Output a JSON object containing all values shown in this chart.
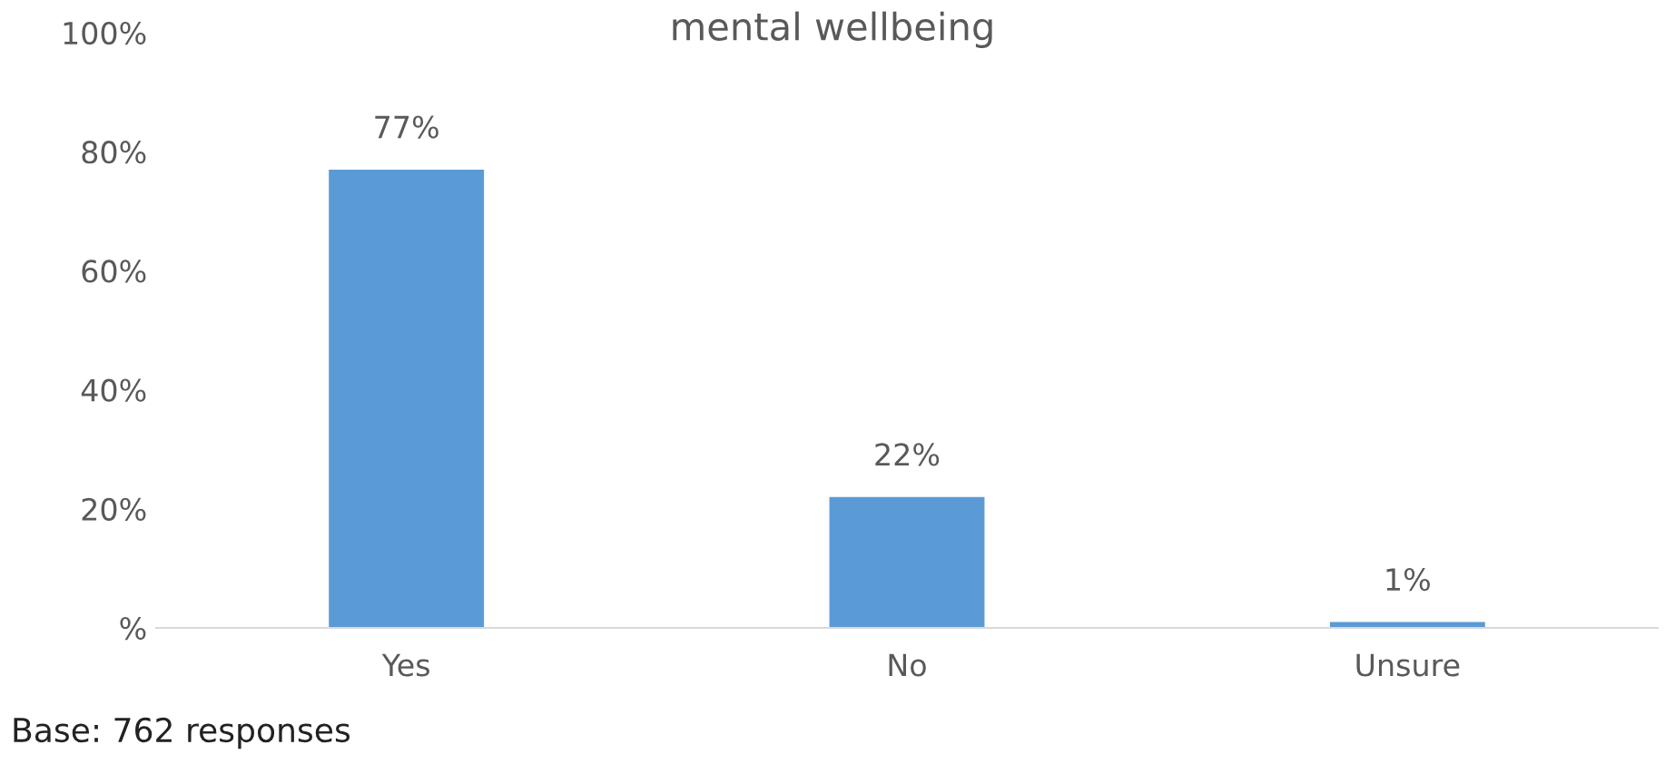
{
  "chart_data": {
    "type": "bar",
    "title": "mental wellbeing",
    "categories": [
      "Yes",
      "No",
      "Unsure"
    ],
    "values": [
      77,
      22,
      1
    ],
    "value_labels": [
      "77%",
      "22%",
      "1%"
    ],
    "color": "#5b9bd5",
    "ylim": [
      0,
      100
    ],
    "yticks": [
      {
        "value": 0,
        "label": "%"
      },
      {
        "value": 20,
        "label": "20%"
      },
      {
        "value": 40,
        "label": "40%"
      },
      {
        "value": 60,
        "label": "60%"
      },
      {
        "value": 80,
        "label": "80%"
      },
      {
        "value": 100,
        "label": "100%"
      }
    ],
    "grid": false,
    "annotations": [
      "Base: 762 responses"
    ]
  }
}
